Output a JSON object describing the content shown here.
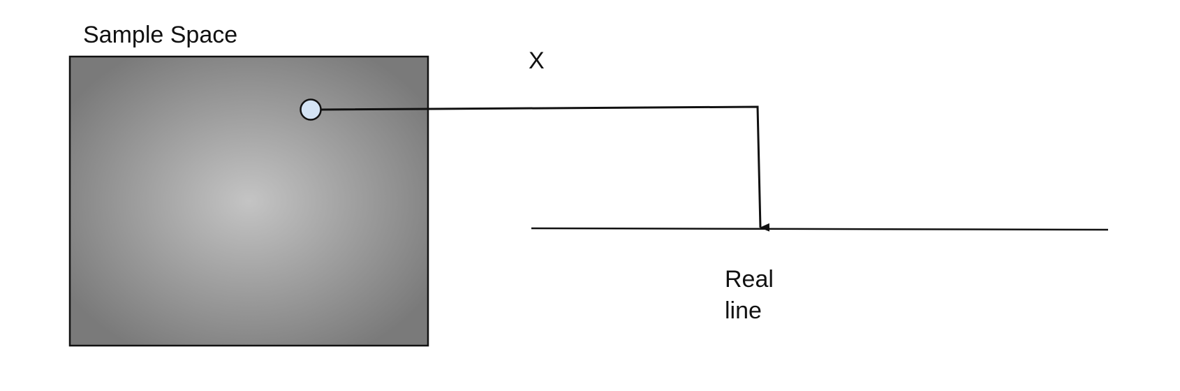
{
  "diagram": {
    "sample_space_label": "Sample Space",
    "mapping_label": "X",
    "real_line_label_line1": "Real",
    "real_line_label_line2": "line"
  },
  "colors": {
    "box_gradient_center": "#c4c4c4",
    "box_gradient_edge": "#7a7a7a",
    "outcome_point_fill": "#d4e4f5",
    "stroke": "#111111"
  }
}
